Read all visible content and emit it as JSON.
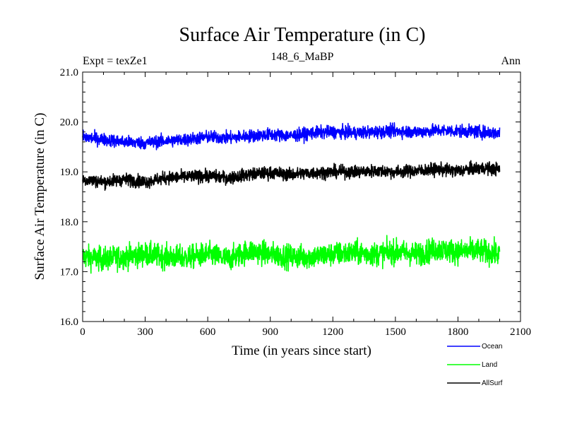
{
  "chart_data": {
    "type": "line",
    "title": "Surface Air Temperature (in C)",
    "left_label": "Expt = texZe1",
    "center_label": "148_6_MaBP",
    "right_label": "Ann",
    "xlabel": "Time (in years since start)",
    "ylabel": "Surface Air Temperature (in C)",
    "xlim": [
      0,
      2100
    ],
    "ylim": [
      16.0,
      21.0
    ],
    "xticks": [
      0,
      300,
      600,
      900,
      1200,
      1500,
      1800,
      2100
    ],
    "yticks": [
      "16.0",
      "17.0",
      "18.0",
      "19.0",
      "20.0",
      "21.0"
    ],
    "x_range": [
      0,
      2000
    ],
    "series": [
      {
        "name": "Ocean",
        "color": "#0000ff",
        "values": [
          19.7,
          19.65,
          19.6,
          19.58,
          19.62,
          19.65,
          19.7,
          19.68,
          19.72,
          19.75,
          19.72,
          19.78,
          19.8,
          19.78,
          19.8,
          19.82,
          19.8,
          19.83,
          19.82,
          19.8,
          19.78
        ]
      },
      {
        "name": "Land",
        "color": "#00ff00",
        "values": [
          17.3,
          17.25,
          17.3,
          17.35,
          17.3,
          17.28,
          17.35,
          17.25,
          17.42,
          17.35,
          17.3,
          17.3,
          17.35,
          17.38,
          17.35,
          17.4,
          17.35,
          17.45,
          17.4,
          17.42,
          17.35
        ]
      },
      {
        "name": "AllSurf",
        "color": "#000000",
        "values": [
          18.85,
          18.8,
          18.85,
          18.8,
          18.88,
          18.9,
          18.92,
          18.88,
          18.95,
          18.98,
          18.95,
          18.98,
          19.0,
          19.0,
          19.02,
          19.0,
          19.02,
          19.05,
          19.02,
          19.08,
          19.05
        ]
      }
    ],
    "legend_position": "bottom-right"
  }
}
